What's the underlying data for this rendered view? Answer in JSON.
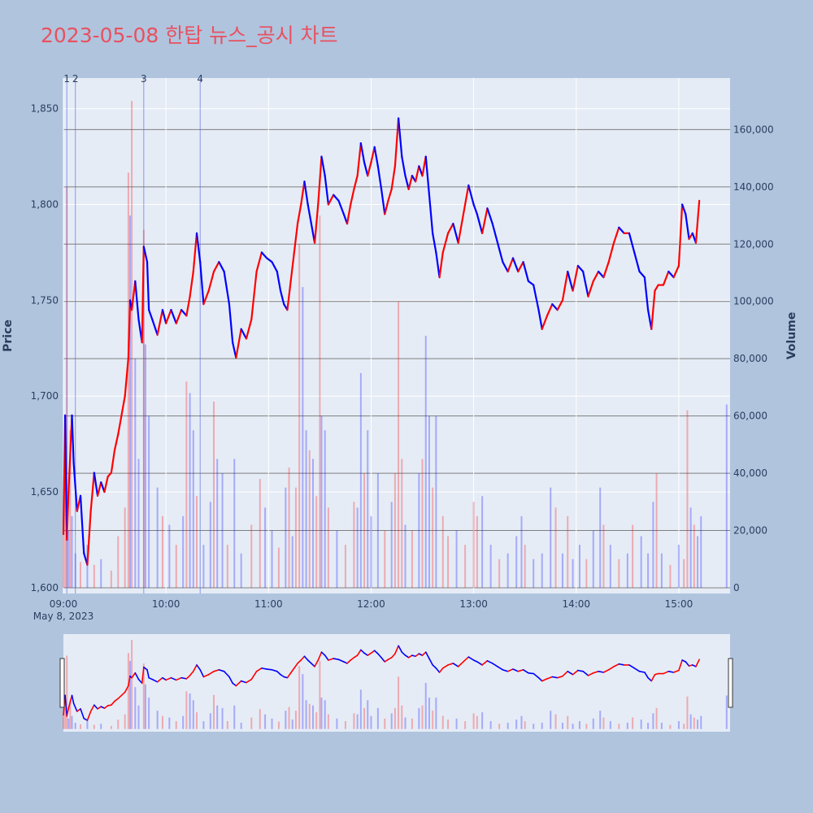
{
  "title": "2023-05-08 한탑 뉴스_공시 차트",
  "colors": {
    "background": "#b0c4de",
    "plot_bg": "#e5ecf6",
    "up": "#ff0000",
    "down": "#0000ff",
    "title": "#e8515f"
  },
  "chart_data": {
    "type": "line",
    "title": "2023-05-08 한탑 뉴스_공시 차트",
    "ylabel": "Price",
    "y2label": "Volume",
    "x_tick_labels": [
      "09:00",
      "10:00",
      "11:00",
      "12:00",
      "13:00",
      "14:00",
      "15:00"
    ],
    "x_date_label": "May 8, 2023",
    "x_range": [
      "09:00",
      "15:30"
    ],
    "ylim": [
      1597,
      1866
    ],
    "y_ticks": [
      "1,600",
      "1,650",
      "1,700",
      "1,750",
      "1,800",
      "1,850"
    ],
    "y2lim": [
      -2000,
      178000
    ],
    "y2_ticks": [
      "0",
      "20,000",
      "40,000",
      "60,000",
      "80,000",
      "100,000",
      "120,000",
      "140,000",
      "160,000"
    ],
    "grid": true,
    "news_markers": [
      {
        "label": "1",
        "time": "09:02"
      },
      {
        "label": "2",
        "time": "09:07"
      },
      {
        "label": "3",
        "time": "09:47"
      },
      {
        "label": "4",
        "time": "10:20"
      }
    ],
    "price_series": {
      "name": "Price",
      "points": [
        [
          "09:00",
          1628
        ],
        [
          "09:01",
          1690
        ],
        [
          "09:02",
          1625
        ],
        [
          "09:03",
          1650
        ],
        [
          "09:05",
          1690
        ],
        [
          "09:06",
          1665
        ],
        [
          "09:08",
          1640
        ],
        [
          "09:10",
          1648
        ],
        [
          "09:12",
          1618
        ],
        [
          "09:14",
          1612
        ],
        [
          "09:16",
          1640
        ],
        [
          "09:18",
          1660
        ],
        [
          "09:20",
          1648
        ],
        [
          "09:22",
          1655
        ],
        [
          "09:24",
          1650
        ],
        [
          "09:26",
          1658
        ],
        [
          "09:28",
          1660
        ],
        [
          "09:30",
          1672
        ],
        [
          "09:32",
          1680
        ],
        [
          "09:34",
          1690
        ],
        [
          "09:36",
          1700
        ],
        [
          "09:38",
          1720
        ],
        [
          "09:39",
          1750
        ],
        [
          "09:40",
          1745
        ],
        [
          "09:42",
          1760
        ],
        [
          "09:44",
          1740
        ],
        [
          "09:46",
          1728
        ],
        [
          "09:47",
          1778
        ],
        [
          "09:49",
          1770
        ],
        [
          "09:50",
          1745
        ],
        [
          "09:52",
          1740
        ],
        [
          "09:55",
          1732
        ],
        [
          "09:58",
          1745
        ],
        [
          "10:00",
          1738
        ],
        [
          "10:03",
          1745
        ],
        [
          "10:06",
          1738
        ],
        [
          "10:09",
          1745
        ],
        [
          "10:12",
          1742
        ],
        [
          "10:14",
          1752
        ],
        [
          "10:16",
          1765
        ],
        [
          "10:18",
          1785
        ],
        [
          "10:20",
          1770
        ],
        [
          "10:22",
          1748
        ],
        [
          "10:25",
          1755
        ],
        [
          "10:28",
          1765
        ],
        [
          "10:31",
          1770
        ],
        [
          "10:34",
          1765
        ],
        [
          "10:37",
          1748
        ],
        [
          "10:39",
          1728
        ],
        [
          "10:41",
          1720
        ],
        [
          "10:44",
          1735
        ],
        [
          "10:47",
          1730
        ],
        [
          "10:50",
          1740
        ],
        [
          "10:53",
          1765
        ],
        [
          "10:56",
          1775
        ],
        [
          "10:59",
          1772
        ],
        [
          "11:02",
          1770
        ],
        [
          "11:05",
          1765
        ],
        [
          "11:07",
          1755
        ],
        [
          "11:09",
          1748
        ],
        [
          "11:11",
          1745
        ],
        [
          "11:13",
          1760
        ],
        [
          "11:15",
          1775
        ],
        [
          "11:17",
          1790
        ],
        [
          "11:19",
          1800
        ],
        [
          "11:21",
          1812
        ],
        [
          "11:23",
          1800
        ],
        [
          "11:25",
          1790
        ],
        [
          "11:27",
          1780
        ],
        [
          "11:29",
          1800
        ],
        [
          "11:31",
          1825
        ],
        [
          "11:33",
          1815
        ],
        [
          "11:35",
          1800
        ],
        [
          "11:38",
          1805
        ],
        [
          "11:41",
          1802
        ],
        [
          "11:44",
          1795
        ],
        [
          "11:46",
          1790
        ],
        [
          "11:48",
          1800
        ],
        [
          "11:50",
          1808
        ],
        [
          "11:52",
          1815
        ],
        [
          "11:54",
          1832
        ],
        [
          "11:56",
          1822
        ],
        [
          "11:58",
          1815
        ],
        [
          "12:00",
          1822
        ],
        [
          "12:02",
          1830
        ],
        [
          "12:04",
          1820
        ],
        [
          "12:06",
          1808
        ],
        [
          "12:08",
          1795
        ],
        [
          "12:10",
          1802
        ],
        [
          "12:12",
          1808
        ],
        [
          "12:14",
          1820
        ],
        [
          "12:16",
          1845
        ],
        [
          "12:18",
          1825
        ],
        [
          "12:20",
          1815
        ],
        [
          "12:22",
          1808
        ],
        [
          "12:24",
          1815
        ],
        [
          "12:26",
          1812
        ],
        [
          "12:28",
          1820
        ],
        [
          "12:30",
          1815
        ],
        [
          "12:32",
          1825
        ],
        [
          "12:34",
          1805
        ],
        [
          "12:36",
          1785
        ],
        [
          "12:38",
          1775
        ],
        [
          "12:40",
          1762
        ],
        [
          "12:42",
          1775
        ],
        [
          "12:45",
          1785
        ],
        [
          "12:48",
          1790
        ],
        [
          "12:51",
          1780
        ],
        [
          "12:54",
          1795
        ],
        [
          "12:57",
          1810
        ],
        [
          "13:00",
          1800
        ],
        [
          "13:02",
          1795
        ],
        [
          "13:05",
          1785
        ],
        [
          "13:08",
          1798
        ],
        [
          "13:11",
          1790
        ],
        [
          "13:14",
          1780
        ],
        [
          "13:17",
          1770
        ],
        [
          "13:20",
          1765
        ],
        [
          "13:23",
          1772
        ],
        [
          "13:26",
          1765
        ],
        [
          "13:29",
          1770
        ],
        [
          "13:32",
          1760
        ],
        [
          "13:35",
          1758
        ],
        [
          "13:38",
          1745
        ],
        [
          "13:40",
          1735
        ],
        [
          "13:43",
          1742
        ],
        [
          "13:46",
          1748
        ],
        [
          "13:49",
          1745
        ],
        [
          "13:52",
          1750
        ],
        [
          "13:55",
          1765
        ],
        [
          "13:58",
          1755
        ],
        [
          "14:01",
          1768
        ],
        [
          "14:04",
          1765
        ],
        [
          "14:07",
          1752
        ],
        [
          "14:10",
          1760
        ],
        [
          "14:13",
          1765
        ],
        [
          "14:16",
          1762
        ],
        [
          "14:19",
          1770
        ],
        [
          "14:22",
          1780
        ],
        [
          "14:25",
          1788
        ],
        [
          "14:28",
          1785
        ],
        [
          "14:31",
          1785
        ],
        [
          "14:34",
          1775
        ],
        [
          "14:37",
          1765
        ],
        [
          "14:40",
          1762
        ],
        [
          "14:42",
          1745
        ],
        [
          "14:44",
          1735
        ],
        [
          "14:46",
          1755
        ],
        [
          "14:48",
          1758
        ],
        [
          "14:51",
          1758
        ],
        [
          "14:54",
          1765
        ],
        [
          "14:57",
          1762
        ],
        [
          "15:00",
          1768
        ],
        [
          "15:02",
          1800
        ],
        [
          "15:04",
          1795
        ],
        [
          "15:06",
          1782
        ],
        [
          "15:08",
          1785
        ],
        [
          "15:10",
          1780
        ],
        [
          "15:12",
          1802
        ]
      ]
    },
    "volume_series": {
      "name": "Volume",
      "bars": [
        [
          "09:00",
          24000,
          "up"
        ],
        [
          "09:01",
          40000,
          "up"
        ],
        [
          "09:02",
          140000,
          "up"
        ],
        [
          "09:03",
          20000,
          "down"
        ],
        [
          "09:04",
          55000,
          "up"
        ],
        [
          "09:05",
          25000,
          "down"
        ],
        [
          "09:07",
          12000,
          "down"
        ],
        [
          "09:10",
          9000,
          "up"
        ],
        [
          "09:14",
          15000,
          "down"
        ],
        [
          "09:18",
          8000,
          "up"
        ],
        [
          "09:22",
          10000,
          "down"
        ],
        [
          "09:28",
          6000,
          "up"
        ],
        [
          "09:32",
          18000,
          "up"
        ],
        [
          "09:36",
          28000,
          "up"
        ],
        [
          "09:38",
          145000,
          "up"
        ],
        [
          "09:39",
          130000,
          "down"
        ],
        [
          "09:40",
          170000,
          "up"
        ],
        [
          "09:42",
          80000,
          "down"
        ],
        [
          "09:44",
          45000,
          "down"
        ],
        [
          "09:47",
          125000,
          "up"
        ],
        [
          "09:48",
          85000,
          "down"
        ],
        [
          "09:50",
          60000,
          "down"
        ],
        [
          "09:55",
          35000,
          "down"
        ],
        [
          "09:58",
          25000,
          "up"
        ],
        [
          "10:02",
          22000,
          "down"
        ],
        [
          "10:06",
          15000,
          "up"
        ],
        [
          "10:10",
          25000,
          "down"
        ],
        [
          "10:12",
          72000,
          "up"
        ],
        [
          "10:14",
          68000,
          "down"
        ],
        [
          "10:16",
          55000,
          "down"
        ],
        [
          "10:18",
          32000,
          "up"
        ],
        [
          "10:22",
          15000,
          "down"
        ],
        [
          "10:26",
          30000,
          "down"
        ],
        [
          "10:28",
          65000,
          "up"
        ],
        [
          "10:30",
          45000,
          "down"
        ],
        [
          "10:33",
          40000,
          "down"
        ],
        [
          "10:36",
          15000,
          "up"
        ],
        [
          "10:40",
          45000,
          "down"
        ],
        [
          "10:44",
          12000,
          "down"
        ],
        [
          "10:50",
          22000,
          "up"
        ],
        [
          "10:55",
          38000,
          "up"
        ],
        [
          "10:58",
          28000,
          "down"
        ],
        [
          "11:02",
          20000,
          "down"
        ],
        [
          "11:06",
          14000,
          "up"
        ],
        [
          "11:10",
          35000,
          "down"
        ],
        [
          "11:12",
          42000,
          "up"
        ],
        [
          "11:14",
          18000,
          "down"
        ],
        [
          "11:16",
          35000,
          "up"
        ],
        [
          "11:18",
          120000,
          "up"
        ],
        [
          "11:20",
          105000,
          "down"
        ],
        [
          "11:22",
          55000,
          "down"
        ],
        [
          "11:24",
          48000,
          "up"
        ],
        [
          "11:26",
          45000,
          "down"
        ],
        [
          "11:28",
          32000,
          "up"
        ],
        [
          "11:30",
          130000,
          "up"
        ],
        [
          "11:31",
          60000,
          "down"
        ],
        [
          "11:33",
          55000,
          "down"
        ],
        [
          "11:35",
          28000,
          "up"
        ],
        [
          "11:40",
          20000,
          "down"
        ],
        [
          "11:45",
          15000,
          "up"
        ],
        [
          "11:50",
          30000,
          "up"
        ],
        [
          "11:52",
          28000,
          "down"
        ],
        [
          "11:54",
          75000,
          "down"
        ],
        [
          "11:56",
          40000,
          "up"
        ],
        [
          "11:58",
          55000,
          "down"
        ],
        [
          "12:00",
          25000,
          "down"
        ],
        [
          "12:04",
          40000,
          "down"
        ],
        [
          "12:08",
          20000,
          "up"
        ],
        [
          "12:12",
          30000,
          "down"
        ],
        [
          "12:14",
          40000,
          "up"
        ],
        [
          "12:16",
          100000,
          "up"
        ],
        [
          "12:18",
          45000,
          "up"
        ],
        [
          "12:20",
          22000,
          "down"
        ],
        [
          "12:24",
          20000,
          "up"
        ],
        [
          "12:28",
          40000,
          "down"
        ],
        [
          "12:30",
          45000,
          "up"
        ],
        [
          "12:32",
          88000,
          "down"
        ],
        [
          "12:34",
          60000,
          "down"
        ],
        [
          "12:36",
          35000,
          "up"
        ],
        [
          "12:38",
          60000,
          "down"
        ],
        [
          "12:42",
          25000,
          "up"
        ],
        [
          "12:45",
          18000,
          "up"
        ],
        [
          "12:50",
          20000,
          "down"
        ],
        [
          "12:55",
          15000,
          "up"
        ],
        [
          "13:00",
          30000,
          "up"
        ],
        [
          "13:02",
          25000,
          "up"
        ],
        [
          "13:05",
          32000,
          "down"
        ],
        [
          "13:10",
          15000,
          "down"
        ],
        [
          "13:15",
          10000,
          "up"
        ],
        [
          "13:20",
          12000,
          "down"
        ],
        [
          "13:25",
          18000,
          "down"
        ],
        [
          "13:28",
          25000,
          "down"
        ],
        [
          "13:30",
          15000,
          "up"
        ],
        [
          "13:35",
          10000,
          "down"
        ],
        [
          "13:40",
          12000,
          "down"
        ],
        [
          "13:45",
          35000,
          "down"
        ],
        [
          "13:48",
          28000,
          "up"
        ],
        [
          "13:52",
          12000,
          "down"
        ],
        [
          "13:55",
          25000,
          "up"
        ],
        [
          "13:58",
          10000,
          "down"
        ],
        [
          "14:02",
          15000,
          "down"
        ],
        [
          "14:06",
          10000,
          "up"
        ],
        [
          "14:10",
          20000,
          "down"
        ],
        [
          "14:14",
          35000,
          "down"
        ],
        [
          "14:16",
          22000,
          "up"
        ],
        [
          "14:20",
          15000,
          "down"
        ],
        [
          "14:25",
          10000,
          "up"
        ],
        [
          "14:30",
          12000,
          "down"
        ],
        [
          "14:33",
          22000,
          "up"
        ],
        [
          "14:38",
          18000,
          "down"
        ],
        [
          "14:42",
          12000,
          "down"
        ],
        [
          "14:45",
          30000,
          "down"
        ],
        [
          "14:47",
          40000,
          "up"
        ],
        [
          "14:50",
          12000,
          "down"
        ],
        [
          "14:55",
          8000,
          "up"
        ],
        [
          "15:00",
          15000,
          "down"
        ],
        [
          "15:03",
          10000,
          "up"
        ],
        [
          "15:05",
          62000,
          "up"
        ],
        [
          "15:07",
          28000,
          "down"
        ],
        [
          "15:09",
          22000,
          "up"
        ],
        [
          "15:11",
          18000,
          "down"
        ],
        [
          "15:13",
          25000,
          "down"
        ],
        [
          "15:28",
          64000,
          "down"
        ]
      ]
    }
  }
}
